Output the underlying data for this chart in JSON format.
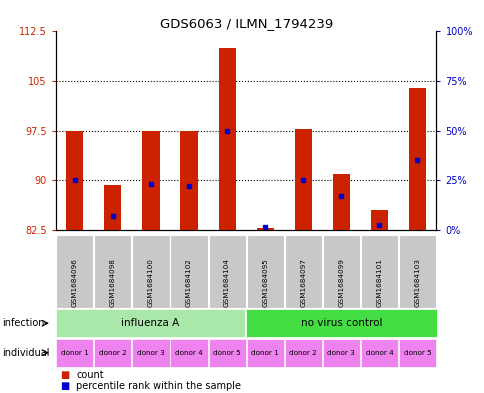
{
  "title": "GDS6063 / ILMN_1794239",
  "samples": [
    "GSM1684096",
    "GSM1684098",
    "GSM1684100",
    "GSM1684102",
    "GSM1684104",
    "GSM1684095",
    "GSM1684097",
    "GSM1684099",
    "GSM1684101",
    "GSM1684103"
  ],
  "red_values": [
    97.5,
    89.3,
    97.5,
    97.5,
    110.0,
    82.8,
    97.8,
    91.0,
    85.5,
    104.0
  ],
  "blue_values": [
    25.0,
    7.0,
    23.0,
    22.0,
    50.0,
    1.5,
    25.0,
    17.0,
    2.5,
    35.0
  ],
  "ymin": 82.5,
  "ymax": 112.5,
  "yticks_left": [
    82.5,
    90.0,
    97.5,
    105.0,
    112.5
  ],
  "ytick_labels_left": [
    "82.5",
    "90",
    "97.5",
    "105",
    "112.5"
  ],
  "yticks_right": [
    0,
    25,
    50,
    75,
    100
  ],
  "ytick_labels_right": [
    "0%",
    "25%",
    "50%",
    "75%",
    "100%"
  ],
  "grid_lines": [
    90,
    97.5,
    105
  ],
  "inf_a_label": "influenza A",
  "inf_a_color": "#aae8aa",
  "nvc_label": "no virus control",
  "nvc_color": "#44dd44",
  "individual_labels": [
    "donor 1",
    "donor 2",
    "donor 3",
    "donor 4",
    "donor 5",
    "donor 1",
    "donor 2",
    "donor 3",
    "donor 4",
    "donor 5"
  ],
  "individual_color": "#ee82ee",
  "bar_color": "#cc2200",
  "blue_color": "#0000cc",
  "bar_width": 0.45,
  "left_axis_color": "#cc2200",
  "right_axis_color": "#0000cc",
  "sample_box_color": "#c8c8c8",
  "infection_row_label": "infection",
  "individual_row_label": "individual",
  "legend_count": "count",
  "legend_percentile": "percentile rank within the sample"
}
